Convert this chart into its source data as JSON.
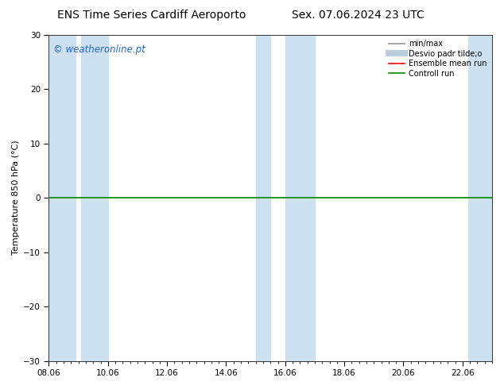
{
  "title_left": "ENS Time Series Cardiff Aeroporto",
  "title_right": "Sex. 07.06.2024 23 UTC",
  "ylabel": "Temperature 850 hPa (°C)",
  "ylim": [
    -30,
    30
  ],
  "yticks": [
    -30,
    -20,
    -10,
    0,
    10,
    20,
    30
  ],
  "xtick_labels": [
    "08.06",
    "10.06",
    "12.06",
    "14.06",
    "16.06",
    "18.06",
    "20.06",
    "22.06"
  ],
  "xtick_positions": [
    0,
    2,
    4,
    6,
    8,
    10,
    12,
    14
  ],
  "shaded_bands": [
    [
      0.0,
      0.9
    ],
    [
      1.1,
      2.0
    ],
    [
      7.0,
      7.5
    ],
    [
      8.0,
      9.0
    ],
    [
      14.2,
      15.0
    ]
  ],
  "shade_color": "#cce0f0",
  "background_color": "#ffffff",
  "hline_y": 0,
  "hline_color": "#008800",
  "hline_lw": 1.2,
  "watermark": "© weatheronline.pt",
  "watermark_color": "#2266cc",
  "legend_items": [
    {
      "label": "min/max",
      "color": "#aaaaaa",
      "lw": 1.5,
      "style": "solid"
    },
    {
      "label": "Desvio padr tilde;o",
      "color": "#bbccdd",
      "lw": 6,
      "style": "solid"
    },
    {
      "label": "Ensemble mean run",
      "color": "#ff0000",
      "lw": 1.2,
      "style": "solid"
    },
    {
      "label": "Controll run",
      "color": "#008800",
      "lw": 1.2,
      "style": "solid"
    }
  ],
  "title_fontsize": 10,
  "tick_fontsize": 7.5,
  "ylabel_fontsize": 8,
  "watermark_fontsize": 8.5,
  "legend_fontsize": 7,
  "total_days": 15,
  "minor_xtick_interval": 0.25
}
